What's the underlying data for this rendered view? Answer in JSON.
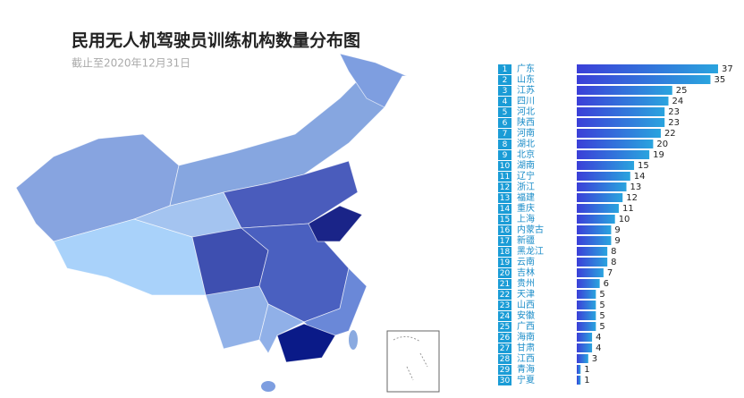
{
  "chart_data": {
    "type": "bar",
    "title": "民用无人机驾驶员训练机构数量分布图",
    "subtitle": "截止至2020年12月31日",
    "ranks": [
      1,
      2,
      3,
      4,
      5,
      6,
      7,
      8,
      9,
      10,
      11,
      12,
      13,
      14,
      15,
      16,
      17,
      18,
      19,
      20,
      21,
      22,
      23,
      24,
      25,
      26,
      27,
      28,
      29,
      30
    ],
    "categories": [
      "广东",
      "山东",
      "江苏",
      "四川",
      "河北",
      "陕西",
      "河南",
      "湖北",
      "北京",
      "湖南",
      "辽宁",
      "浙江",
      "福建",
      "重庆",
      "上海",
      "内蒙古",
      "新疆",
      "黑龙江",
      "云南",
      "吉林",
      "贵州",
      "天津",
      "山西",
      "安徽",
      "广西",
      "海南",
      "甘肃",
      "江西",
      "青海",
      "宁夏"
    ],
    "values": [
      37,
      35,
      25,
      24,
      23,
      23,
      22,
      20,
      19,
      15,
      14,
      13,
      12,
      11,
      10,
      9,
      9,
      8,
      8,
      7,
      6,
      5,
      5,
      5,
      5,
      4,
      4,
      3,
      1,
      1
    ]
  }
}
